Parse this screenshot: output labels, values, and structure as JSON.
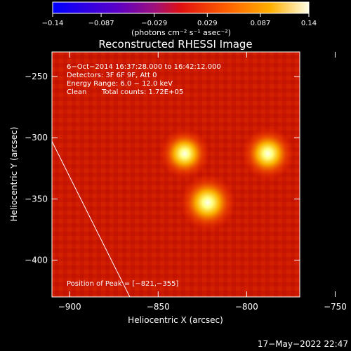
{
  "chart_data": {
    "type": "heatmap",
    "title": "Reconstructed RHESSI Image",
    "xlabel": "Heliocentric X (arcsec)",
    "ylabel": "Heliocentric Y (arcsec)",
    "xlim": [
      -910,
      -770
    ],
    "ylim": [
      -430,
      -230
    ],
    "x_ticks": [
      -900,
      -850,
      -800,
      -750
    ],
    "x_tick_labels": [
      "−900",
      "−850",
      "−800",
      "−750"
    ],
    "y_ticks": [
      -250,
      -300,
      -350,
      -400
    ],
    "y_tick_labels": [
      "−250",
      "−300",
      "−350",
      "−400"
    ],
    "colorbar": {
      "min": -0.14,
      "max": 0.14,
      "ticks": [
        -0.14,
        -0.087,
        -0.029,
        0.029,
        0.087,
        0.14
      ],
      "tick_labels": [
        "−0.14",
        "−0.087",
        "−0.029",
        "0.029",
        "0.087",
        "0.14"
      ],
      "unit_label": "(photons cm⁻² s⁻¹ asec⁻²)"
    },
    "sources": [
      {
        "x": -835,
        "y": -313,
        "intensity": 0.11
      },
      {
        "x": -788,
        "y": -313,
        "intensity": 0.12
      },
      {
        "x": -822,
        "y": -353,
        "intensity": 0.14
      }
    ],
    "limb_line": [
      {
        "x": -910,
        "y": -303
      },
      {
        "x": -866,
        "y": -430
      }
    ],
    "annotations": [
      "6−Oct−2014 16:37:28.000 to 16:42:12.000",
      "Detectors: 3F 6F 9F, Att 0",
      "Energy Range: 6.0 − 12.0 keV",
      "Clean",
      "Total counts: 1.72E+05",
      "Position of Peak = [−821,−355]"
    ],
    "footer_timestamp": "17−May−2022 22:47"
  }
}
